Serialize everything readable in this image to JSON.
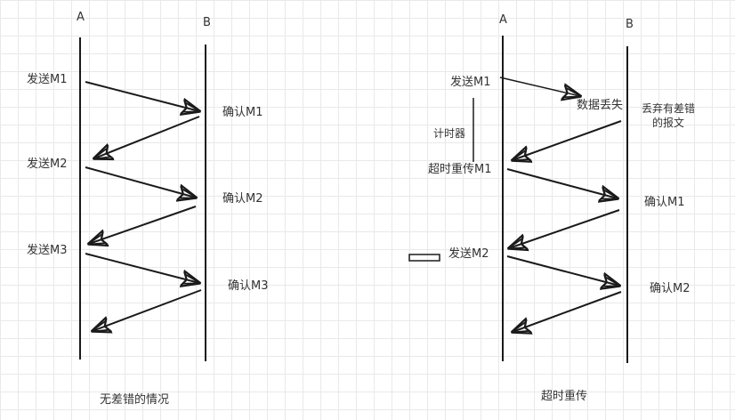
{
  "left_diagram": {
    "endpoint_a": "A",
    "endpoint_b": "B",
    "send_m1": "发送M1",
    "confirm_m1": "确认M1",
    "send_m2": "发送M2",
    "confirm_m2": "确认M2",
    "send_m3": "发送M3",
    "confirm_m3": "确认M3",
    "caption": "无差错的情况"
  },
  "right_diagram": {
    "endpoint_a": "A",
    "endpoint_b": "B",
    "send_m1": "发送M1",
    "data_lost": "数据丢失",
    "discard_line1": "丢弃有差错",
    "discard_line2": "的报文",
    "timer": "计时器",
    "timeout_resend": "超时重传M1",
    "confirm_m1": "确认M1",
    "send_m2": "发送M2",
    "confirm_m2": "确认M2",
    "caption": "超时重传"
  },
  "colors": {
    "line": "#1a1a1a",
    "text": "#333333",
    "grid": "#e9e9e9"
  }
}
